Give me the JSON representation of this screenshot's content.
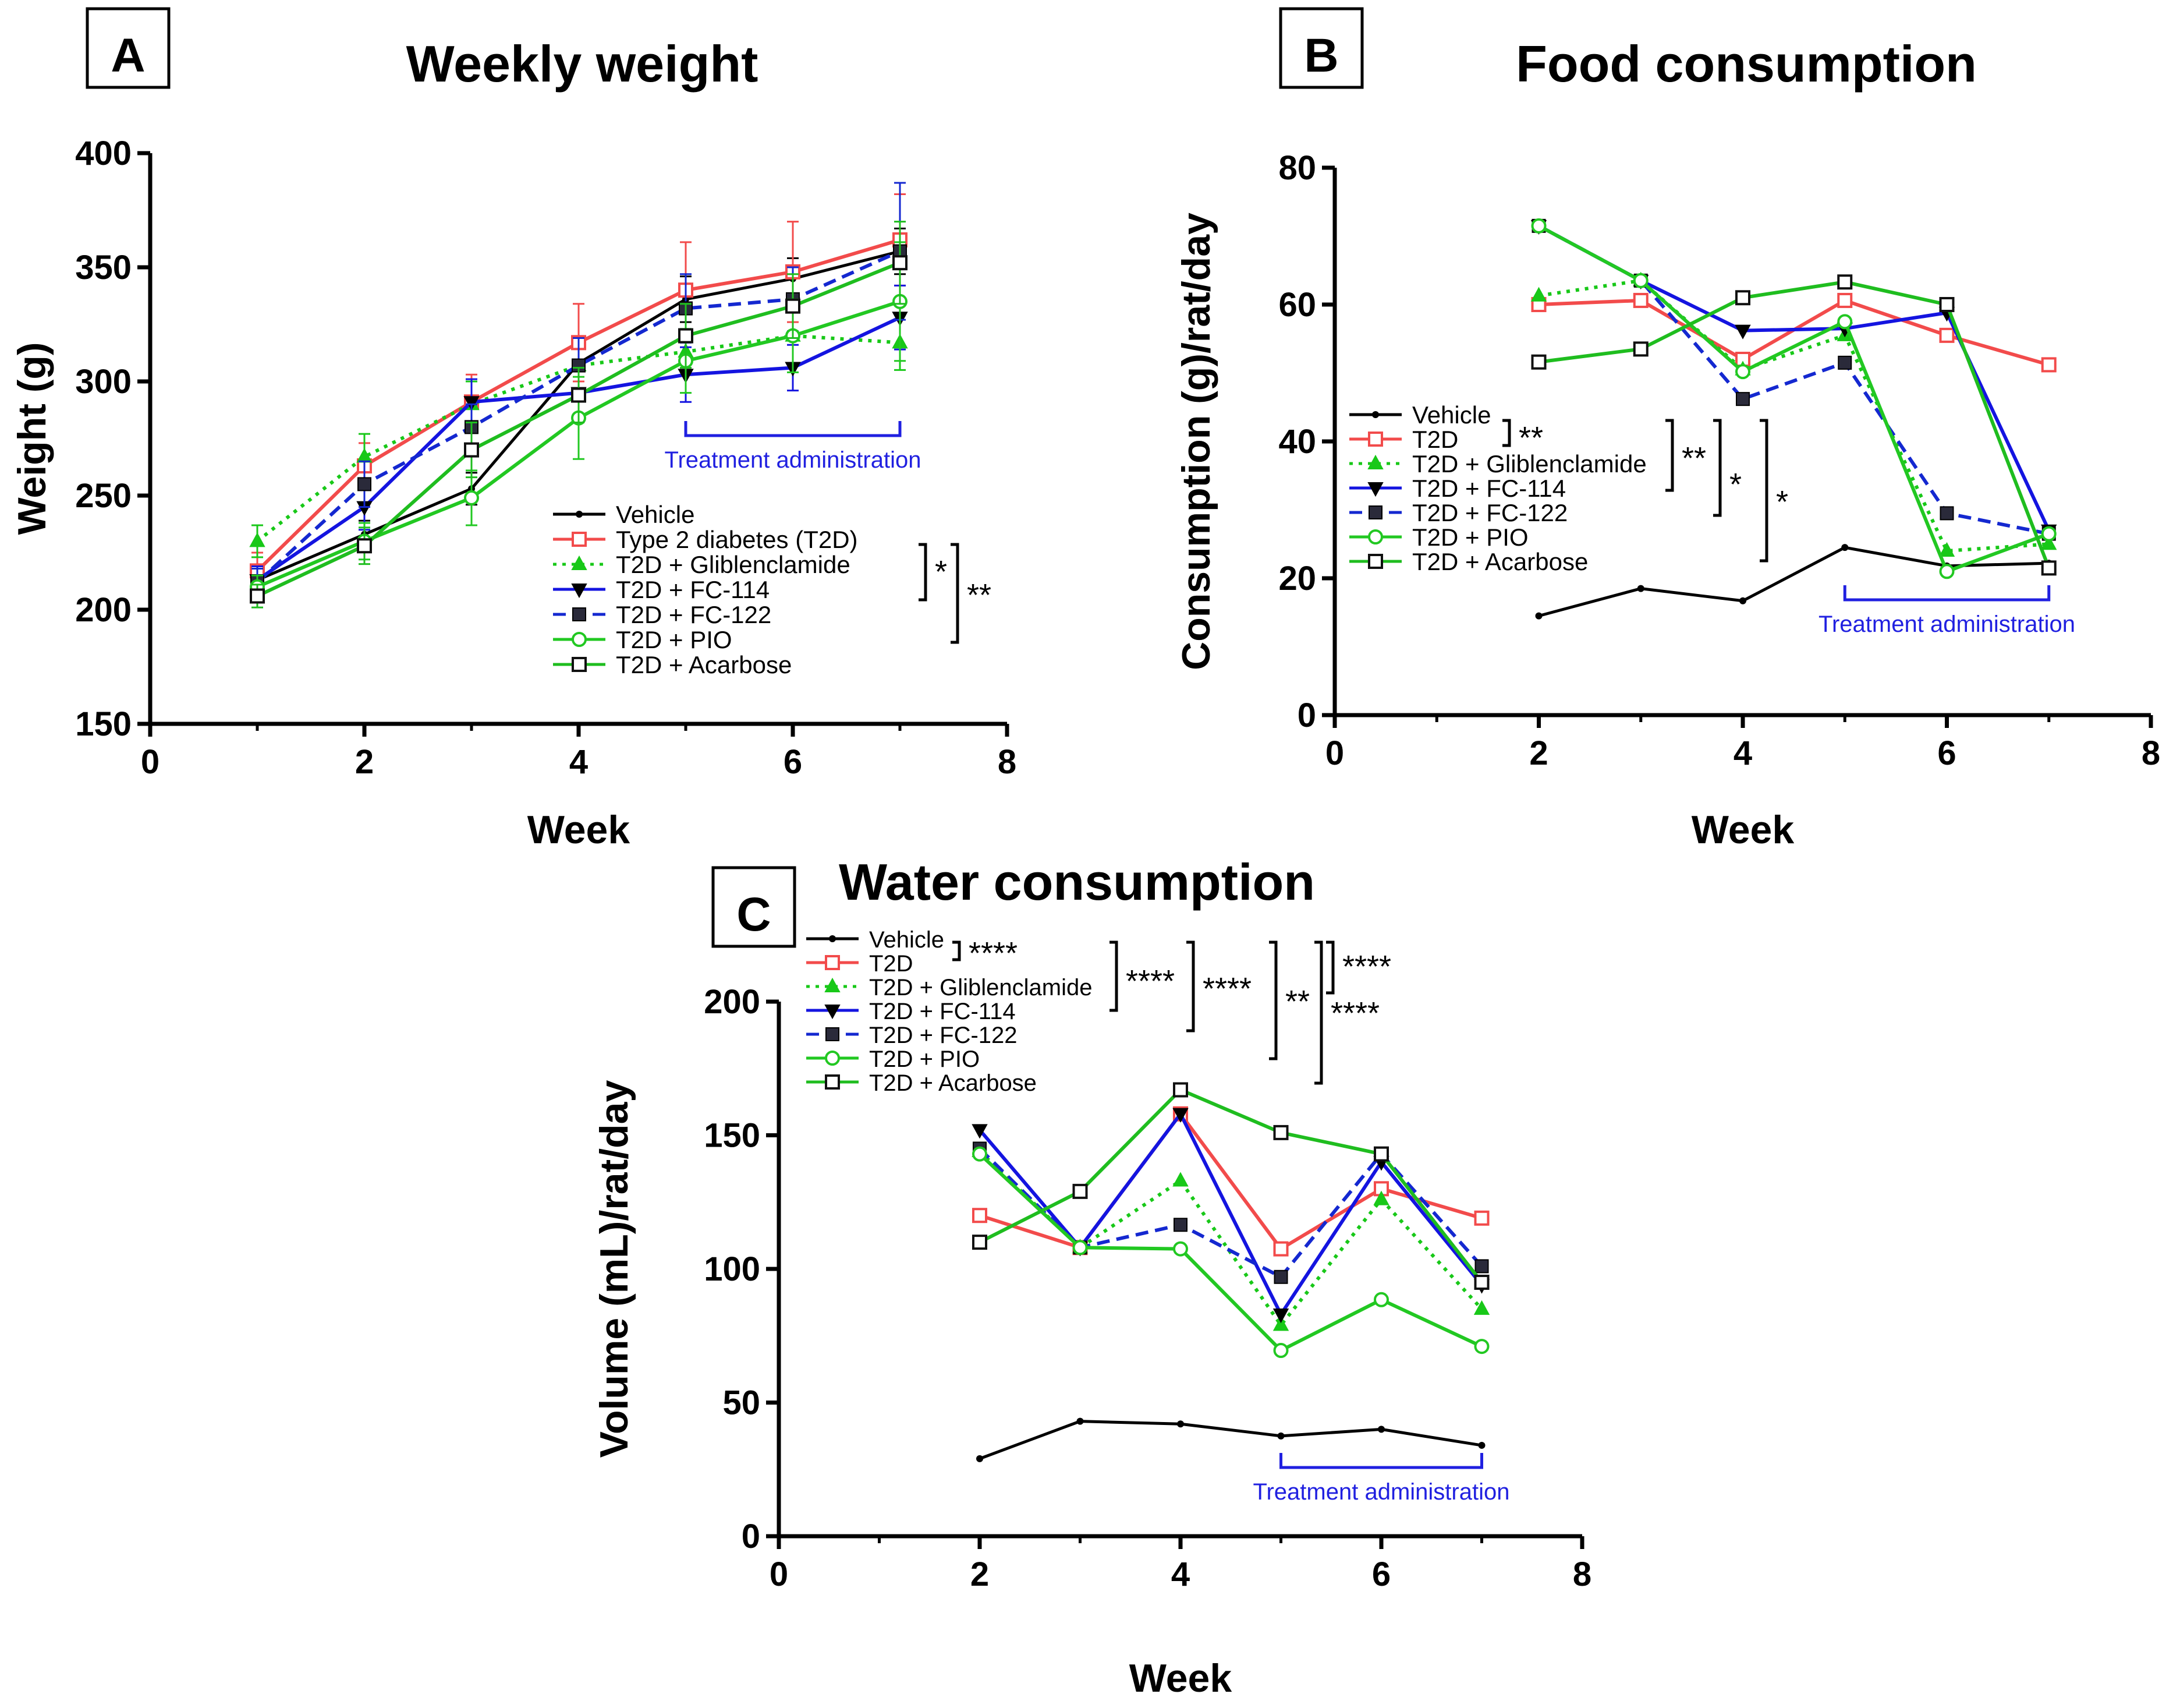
{
  "figure": {
    "panels": [
      {
        "letter": "A",
        "title": "Weekly weight"
      },
      {
        "letter": "B",
        "title": "Food consumption"
      },
      {
        "letter": "C",
        "title": "Water consumption"
      }
    ]
  },
  "colors": {
    "vehicle": "#000000",
    "t2d": "#f24b4b",
    "glib": "#18c818",
    "fc114": "#1414e0",
    "fc122": "#1428d0",
    "pio": "#22c822",
    "acarbose": "#1fbd1f",
    "treatment": "#2020e0"
  },
  "chart_data": [
    {
      "type": "line",
      "title": "Weekly weight",
      "xlabel": "Week",
      "ylabel": "Weight (g)",
      "xlim": [
        0,
        8
      ],
      "ylim": [
        150,
        400
      ],
      "xticks": [
        0,
        2,
        4,
        6,
        8
      ],
      "yticks": [
        150,
        200,
        250,
        300,
        350,
        400
      ],
      "x": [
        1,
        2,
        3,
        4,
        5,
        6,
        7
      ],
      "series": [
        {
          "key": "vehicle",
          "name": "Vehicle",
          "values": [
            213,
            233,
            253,
            308,
            336,
            345,
            357
          ],
          "err": [
            6,
            6,
            7,
            8,
            10,
            9,
            10
          ]
        },
        {
          "key": "t2d",
          "name": "Type 2 diabetes (T2D)",
          "values": [
            217,
            263,
            291,
            317,
            340,
            348,
            362
          ],
          "err": [
            8,
            10,
            12,
            17,
            21,
            22,
            20
          ]
        },
        {
          "key": "glib",
          "name": "T2D + Gliblenclamide",
          "values": [
            230,
            267,
            290,
            307,
            313,
            320,
            317
          ],
          "err": [
            7,
            10,
            10,
            12,
            10,
            12,
            12
          ]
        },
        {
          "key": "fc114",
          "name": "T2D + FC-114",
          "values": [
            213,
            245,
            291,
            295,
            303,
            306,
            328
          ],
          "err": [
            6,
            10,
            10,
            10,
            12,
            10,
            14
          ]
        },
        {
          "key": "fc122",
          "name": "T2D + FC-122",
          "values": [
            212,
            255,
            280,
            307,
            332,
            336,
            357
          ],
          "err": [
            6,
            10,
            10,
            12,
            15,
            14,
            30
          ]
        },
        {
          "key": "pio",
          "name": "T2D + PIO",
          "values": [
            210,
            230,
            249,
            284,
            309,
            320,
            335
          ],
          "err": [
            5,
            8,
            12,
            18,
            14,
            16,
            26
          ]
        },
        {
          "key": "acarbose",
          "name": "T2D + Acarbose",
          "values": [
            206,
            228,
            270,
            294,
            320,
            333,
            352
          ],
          "err": [
            5,
            8,
            12,
            12,
            14,
            14,
            18
          ]
        }
      ],
      "treatment_label": "Treatment administration",
      "treatment_range": [
        5,
        7
      ],
      "significance": [
        "*",
        "**"
      ]
    },
    {
      "type": "line",
      "title": "Food consumption",
      "xlabel": "Week",
      "ylabel": "Consumption (g)/rat/day",
      "xlim": [
        0,
        8
      ],
      "ylim": [
        0,
        80
      ],
      "xticks": [
        0,
        2,
        4,
        6,
        8
      ],
      "yticks": [
        0,
        20,
        40,
        60,
        80
      ],
      "x": [
        2,
        3,
        4,
        5,
        6,
        7
      ],
      "series": [
        {
          "key": "vehicle",
          "name": "Vehicle",
          "values": [
            14.5,
            18.5,
            16.7,
            24.5,
            21.8,
            22.2
          ]
        },
        {
          "key": "t2d",
          "name": "T2D",
          "values": [
            60,
            60.6,
            52,
            60.6,
            55.5,
            51.2
          ]
        },
        {
          "key": "glib",
          "name": "T2D + Gliblenclamide",
          "values": [
            61.3,
            63.5,
            50.5,
            55.5,
            24,
            25
          ]
        },
        {
          "key": "fc114",
          "name": "T2D + FC-114",
          "values": [
            71.5,
            63.5,
            56.2,
            56.5,
            58.8,
            27
          ]
        },
        {
          "key": "fc122",
          "name": "T2D + FC-122",
          "values": [
            71.5,
            63.5,
            46.2,
            51.5,
            29.5,
            26.5
          ]
        },
        {
          "key": "pio",
          "name": "T2D + PIO",
          "values": [
            71.5,
            63.5,
            50.2,
            57.5,
            21,
            26.5
          ]
        },
        {
          "key": "acarbose",
          "name": "T2D + Acarbose",
          "values": [
            51.6,
            53.5,
            61,
            63.3,
            60,
            21.5
          ]
        }
      ],
      "treatment_label": "Treatment administration",
      "treatment_range": [
        5,
        7
      ],
      "significance": [
        "**",
        "**",
        "*",
        "*"
      ]
    },
    {
      "type": "line",
      "title": "Water consumption",
      "xlabel": "Week",
      "ylabel": "Volume (mL)/rat/day",
      "xlim": [
        0,
        8
      ],
      "ylim": [
        0,
        200
      ],
      "xticks": [
        0,
        2,
        4,
        6,
        8
      ],
      "yticks": [
        0,
        50,
        100,
        150,
        200
      ],
      "x": [
        2,
        3,
        4,
        5,
        6,
        7
      ],
      "series": [
        {
          "key": "vehicle",
          "name": "Vehicle",
          "values": [
            29,
            43,
            42,
            37.5,
            40,
            34
          ]
        },
        {
          "key": "t2d",
          "name": "T2D",
          "values": [
            120,
            108,
            158,
            107.5,
            130,
            119
          ]
        },
        {
          "key": "glib",
          "name": "T2D + Gliblenclamide",
          "values": [
            144,
            108,
            133,
            79,
            126,
            85
          ]
        },
        {
          "key": "fc114",
          "name": "T2D + FC-114",
          "values": [
            152,
            108,
            158,
            83,
            140,
            94
          ]
        },
        {
          "key": "fc122",
          "name": "T2D + FC-122",
          "values": [
            145,
            108,
            116.5,
            97,
            143,
            101
          ]
        },
        {
          "key": "pio",
          "name": "T2D + PIO",
          "values": [
            143,
            108,
            107.5,
            69.5,
            88.5,
            71
          ]
        },
        {
          "key": "acarbose",
          "name": "T2D + Acarbose",
          "values": [
            110,
            129,
            167,
            151,
            143,
            95
          ]
        }
      ],
      "treatment_label": "Treatment administration",
      "treatment_range": [
        5,
        7
      ],
      "significance": [
        "****",
        "****",
        "****",
        "**",
        "****",
        "****"
      ]
    }
  ]
}
